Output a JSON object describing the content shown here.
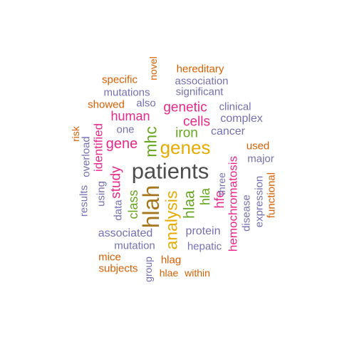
{
  "colors": {
    "gray": "#4d4d4d",
    "orange": "#d95f02",
    "purple": "#7570b3",
    "magenta": "#e7298a",
    "green": "#66a61e",
    "gold": "#e6ab02",
    "brown": "#a6761d"
  },
  "words": [
    {
      "text": "patients",
      "color": "gray",
      "vertical": false
    },
    {
      "text": "hlah",
      "color": "brown",
      "vertical": true
    },
    {
      "text": "genes",
      "color": "gold",
      "vertical": false
    },
    {
      "text": "analysis",
      "color": "gold",
      "vertical": true
    },
    {
      "text": "mhc",
      "color": "green",
      "vertical": true
    },
    {
      "text": "hlaa",
      "color": "green",
      "vertical": true
    },
    {
      "text": "gene",
      "color": "magenta",
      "vertical": false
    },
    {
      "text": "genetic",
      "color": "magenta",
      "vertical": false
    },
    {
      "text": "cells",
      "color": "magenta",
      "vertical": false
    },
    {
      "text": "iron",
      "color": "green",
      "vertical": false
    },
    {
      "text": "human",
      "color": "magenta",
      "vertical": false
    },
    {
      "text": "study",
      "color": "magenta",
      "vertical": true
    },
    {
      "text": "identified",
      "color": "magenta",
      "vertical": true
    },
    {
      "text": "class",
      "color": "green",
      "vertical": true
    },
    {
      "text": "hla",
      "color": "green",
      "vertical": true
    },
    {
      "text": "hfe",
      "color": "magenta",
      "vertical": true
    },
    {
      "text": "hemochromatosis",
      "color": "magenta",
      "vertical": true
    },
    {
      "text": "cancer",
      "color": "purple",
      "vertical": false
    },
    {
      "text": "complex",
      "color": "purple",
      "vertical": false
    },
    {
      "text": "clinical",
      "color": "purple",
      "vertical": false
    },
    {
      "text": "significant",
      "color": "purple",
      "vertical": false
    },
    {
      "text": "association",
      "color": "purple",
      "vertical": false
    },
    {
      "text": "hereditary",
      "color": "orange",
      "vertical": false
    },
    {
      "text": "novel",
      "color": "orange",
      "vertical": true
    },
    {
      "text": "specific",
      "color": "orange",
      "vertical": false
    },
    {
      "text": "mutations",
      "color": "purple",
      "vertical": false
    },
    {
      "text": "showed",
      "color": "orange",
      "vertical": false
    },
    {
      "text": "also",
      "color": "purple",
      "vertical": false
    },
    {
      "text": "one",
      "color": "purple",
      "vertical": false
    },
    {
      "text": "risk",
      "color": "orange",
      "vertical": true
    },
    {
      "text": "overload",
      "color": "purple",
      "vertical": true
    },
    {
      "text": "results",
      "color": "purple",
      "vertical": true
    },
    {
      "text": "using",
      "color": "purple",
      "vertical": true
    },
    {
      "text": "data",
      "color": "purple",
      "vertical": true
    },
    {
      "text": "used",
      "color": "orange",
      "vertical": false
    },
    {
      "text": "major",
      "color": "purple",
      "vertical": false
    },
    {
      "text": "three",
      "color": "purple",
      "vertical": true
    },
    {
      "text": "disease",
      "color": "purple",
      "vertical": true
    },
    {
      "text": "expression",
      "color": "purple",
      "vertical": true
    },
    {
      "text": "functional",
      "color": "orange",
      "vertical": true
    },
    {
      "text": "protein",
      "color": "purple",
      "vertical": false
    },
    {
      "text": "associated",
      "color": "purple",
      "vertical": false
    },
    {
      "text": "mutation",
      "color": "purple",
      "vertical": false
    },
    {
      "text": "hepatic",
      "color": "purple",
      "vertical": false
    },
    {
      "text": "mice",
      "color": "orange",
      "vertical": false
    },
    {
      "text": "subjects",
      "color": "orange",
      "vertical": false
    },
    {
      "text": "group",
      "color": "purple",
      "vertical": true
    },
    {
      "text": "hlag",
      "color": "orange",
      "vertical": false
    },
    {
      "text": "hlae",
      "color": "orange",
      "vertical": false
    },
    {
      "text": "within",
      "color": "orange",
      "vertical": false
    }
  ]
}
